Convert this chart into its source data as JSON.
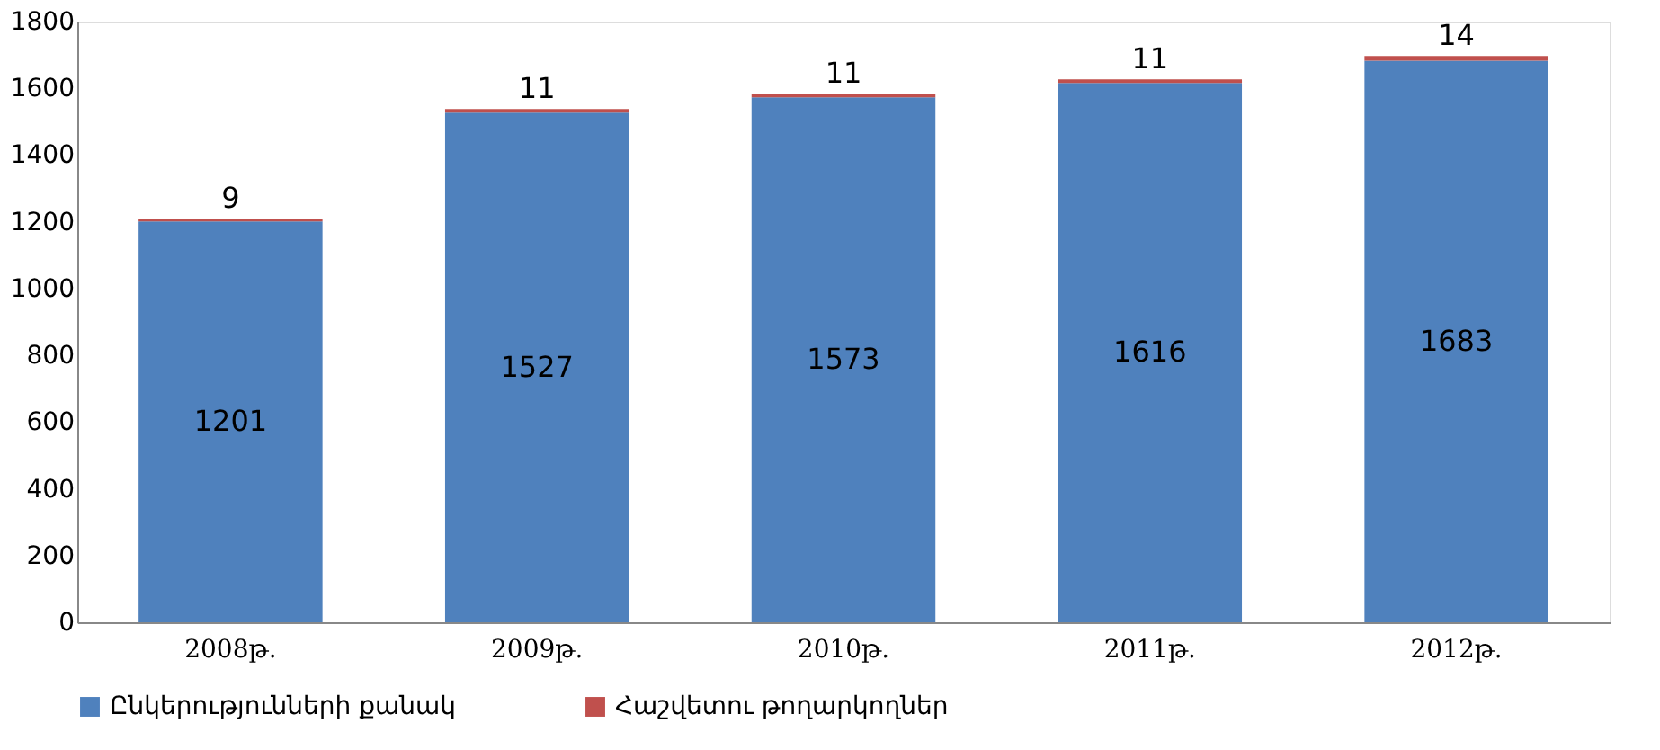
{
  "chart_data": {
    "type": "bar",
    "stacked": true,
    "categories": [
      "2008թ.",
      "2009թ.",
      "2010թ.",
      "2011թ.",
      "2012թ."
    ],
    "series": [
      {
        "name": "Ընկերությունների քանակ",
        "color": "#4f81bd",
        "values": [
          1201,
          1527,
          1573,
          1616,
          1683
        ]
      },
      {
        "name": "Հաշվետու թողարկողներ",
        "color": "#c0504d",
        "values": [
          9,
          11,
          11,
          11,
          14
        ]
      }
    ],
    "ylim": [
      0,
      1800
    ],
    "yticks": [
      0,
      200,
      400,
      600,
      800,
      1000,
      1200,
      1400,
      1600,
      1800
    ],
    "grid": false,
    "legend": "bottom",
    "data_labels": true
  }
}
